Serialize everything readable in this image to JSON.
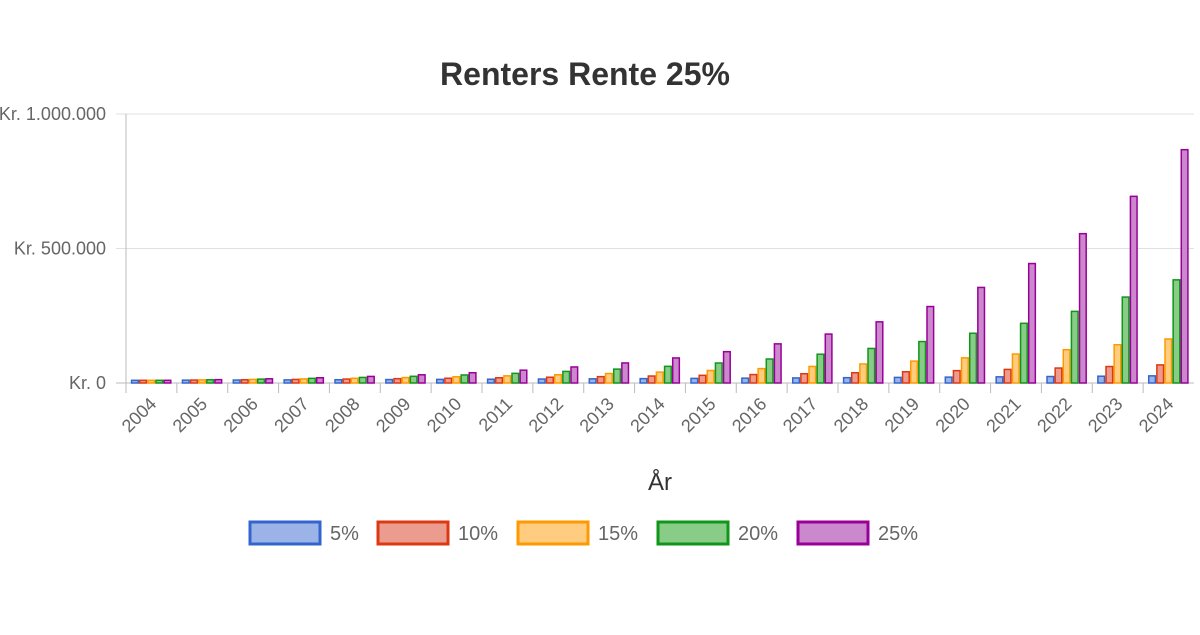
{
  "chart_data": {
    "type": "bar",
    "title": "Renters Rente 25%",
    "xlabel": "År",
    "ylabel": "",
    "ylim": [
      0,
      1000000
    ],
    "y_ticks": [
      {
        "value": 0,
        "label": "Kr. 0"
      },
      {
        "value": 500000,
        "label": "Kr. 500.000"
      },
      {
        "value": 1000000,
        "label": "Kr. 1.000.000"
      }
    ],
    "grid": true,
    "legend": "bottom",
    "categories": [
      "2004",
      "2005",
      "2006",
      "2007",
      "2008",
      "2009",
      "2010",
      "2011",
      "2012",
      "2013",
      "2014",
      "2015",
      "2016",
      "2017",
      "2018",
      "2019",
      "2020",
      "2021",
      "2022",
      "2023",
      "2024"
    ],
    "series": [
      {
        "name": "5%",
        "fill": "#9bb3e6",
        "stroke": "#3366cc",
        "values": [
          10000,
          10500,
          11025,
          11576,
          12155,
          12763,
          13401,
          14071,
          14775,
          15513,
          16289,
          17103,
          17959,
          18856,
          19799,
          20789,
          21829,
          22920,
          24066,
          25270,
          26533
        ]
      },
      {
        "name": "10%",
        "fill": "#ec9c8e",
        "stroke": "#dc3912",
        "values": [
          10000,
          11000,
          12100,
          13310,
          14641,
          16105,
          17716,
          19487,
          21436,
          23579,
          25937,
          28531,
          31384,
          34523,
          37975,
          41772,
          45950,
          50545,
          55599,
          61159,
          67275
        ]
      },
      {
        "name": "15%",
        "fill": "#ffcc80",
        "stroke": "#ff9900",
        "values": [
          10000,
          11500,
          13225,
          15209,
          17490,
          20114,
          23131,
          26600,
          30590,
          35179,
          40456,
          46524,
          53503,
          61528,
          70757,
          81371,
          93576,
          107613,
          123755,
          142318,
          163665
        ]
      },
      {
        "name": "20%",
        "fill": "#88cc88",
        "stroke": "#109618",
        "values": [
          10000,
          12000,
          14400,
          17280,
          20736,
          24883,
          29860,
          35832,
          42998,
          51598,
          61917,
          74301,
          89161,
          106993,
          128392,
          154070,
          184884,
          221861,
          266233,
          319480,
          383376
        ]
      },
      {
        "name": "25%",
        "fill": "#cc88cc",
        "stroke": "#990099",
        "values": [
          10000,
          12500,
          15625,
          19531,
          24414,
          30518,
          38147,
          47684,
          59605,
          74506,
          93132,
          116415,
          145519,
          181899,
          227374,
          284217,
          355271,
          444089,
          555112,
          693889,
          867362
        ]
      }
    ]
  }
}
